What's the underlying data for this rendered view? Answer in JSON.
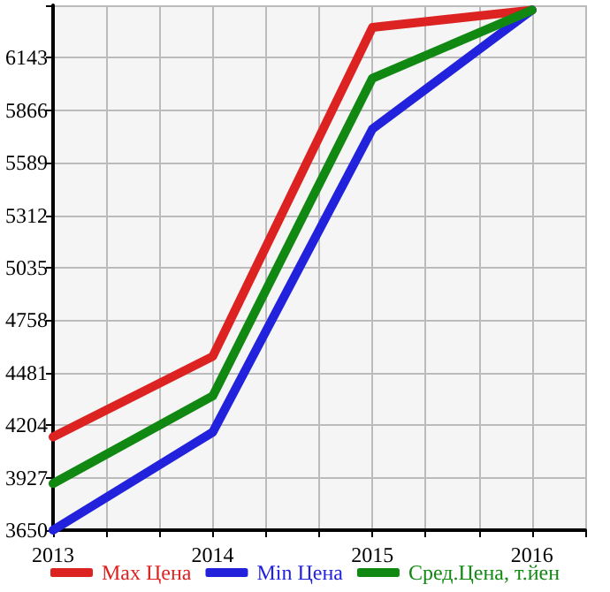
{
  "chart_data": {
    "type": "line",
    "x": [
      2013,
      2014,
      2015,
      2016
    ],
    "series": [
      {
        "name": "Max Цена",
        "color": "#dd2222",
        "values": [
          4142,
          4567,
          6303,
          6395
        ]
      },
      {
        "name": "Min Цена",
        "color": "#2222dd",
        "values": [
          3650,
          4167,
          5767,
          6395
        ]
      },
      {
        "name": "Сред.Цена, т.йен",
        "color": "#118811",
        "values": [
          3896,
          4358,
          6035,
          6395
        ]
      }
    ],
    "xlim": [
      2013,
      2016.333
    ],
    "xticks": [
      2013,
      {
        "value": 2013.333,
        "label": null
      },
      {
        "value": 2013.667,
        "label": null
      },
      2014,
      {
        "value": 2014.333,
        "label": null
      },
      {
        "value": 2014.667,
        "label": null
      },
      2015,
      {
        "value": 2015.333,
        "label": null
      },
      {
        "value": 2015.667,
        "label": null
      },
      2016,
      {
        "value": 2016.333,
        "label": null
      }
    ],
    "ylim": [
      3650,
      6420
    ],
    "yticks": [
      3650,
      3927,
      4204,
      4481,
      4758,
      5035,
      5312,
      5589,
      5866,
      6143,
      {
        "value": 6420,
        "label": null
      }
    ],
    "grid": true,
    "legend": "bottom",
    "marker": "none",
    "line_style": "solid"
  }
}
